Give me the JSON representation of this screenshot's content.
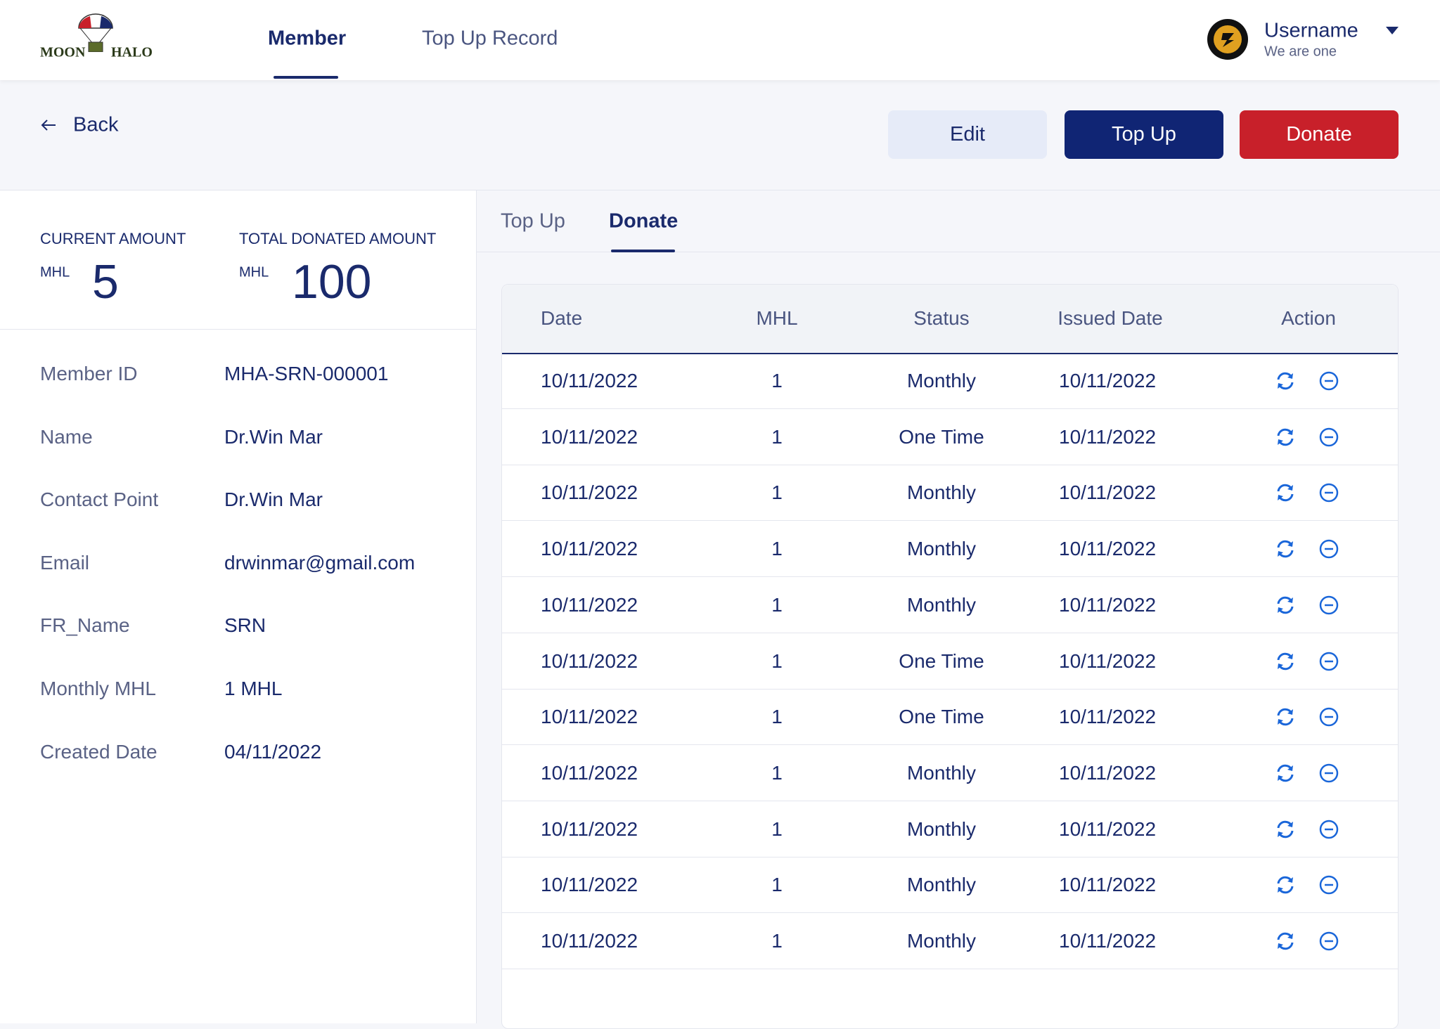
{
  "logo": {
    "left": "MOON",
    "right": "HALO"
  },
  "nav": [
    "Member",
    "Top Up Record"
  ],
  "user": {
    "name": "Username",
    "subtitle": "We are one"
  },
  "back": "Back",
  "buttons": [
    "Edit",
    "Top Up",
    "Donate"
  ],
  "summary": [
    {
      "label": "CURRENT AMOUNT",
      "unit": "MHL",
      "value": "5"
    },
    {
      "label": "TOTAL DONATED AMOUNT",
      "unit": "MHL",
      "value": "100"
    }
  ],
  "details": [
    [
      "Member ID",
      "MHA-SRN-000001"
    ],
    [
      "Name",
      "Dr.Win Mar"
    ],
    [
      "Contact Point",
      "Dr.Win Mar"
    ],
    [
      "Email",
      "drwinmar@gmail.com"
    ],
    [
      "FR_Name",
      "SRN"
    ],
    [
      "Monthly MHL",
      "1 MHL"
    ],
    [
      "Created Date",
      "04/11/2022"
    ]
  ],
  "tabs": [
    "Top Up",
    "Donate"
  ],
  "table": {
    "columns": [
      "Date",
      "MHL",
      "Status",
      "Issued Date",
      "Action"
    ],
    "rows": [
      [
        "10/11/2022",
        "1",
        "Monthly",
        "10/11/2022"
      ],
      [
        "10/11/2022",
        "1",
        "One Time",
        "10/11/2022"
      ],
      [
        "10/11/2022",
        "1",
        "Monthly",
        "10/11/2022"
      ],
      [
        "10/11/2022",
        "1",
        "Monthly",
        "10/11/2022"
      ],
      [
        "10/11/2022",
        "1",
        "Monthly",
        "10/11/2022"
      ],
      [
        "10/11/2022",
        "1",
        "One Time",
        "10/11/2022"
      ],
      [
        "10/11/2022",
        "1",
        "One Time",
        "10/11/2022"
      ],
      [
        "10/11/2022",
        "1",
        "Monthly",
        "10/11/2022"
      ],
      [
        "10/11/2022",
        "1",
        "Monthly",
        "10/11/2022"
      ],
      [
        "10/11/2022",
        "1",
        "Monthly",
        "10/11/2022"
      ],
      [
        "10/11/2022",
        "1",
        "Monthly",
        "10/11/2022"
      ]
    ]
  }
}
